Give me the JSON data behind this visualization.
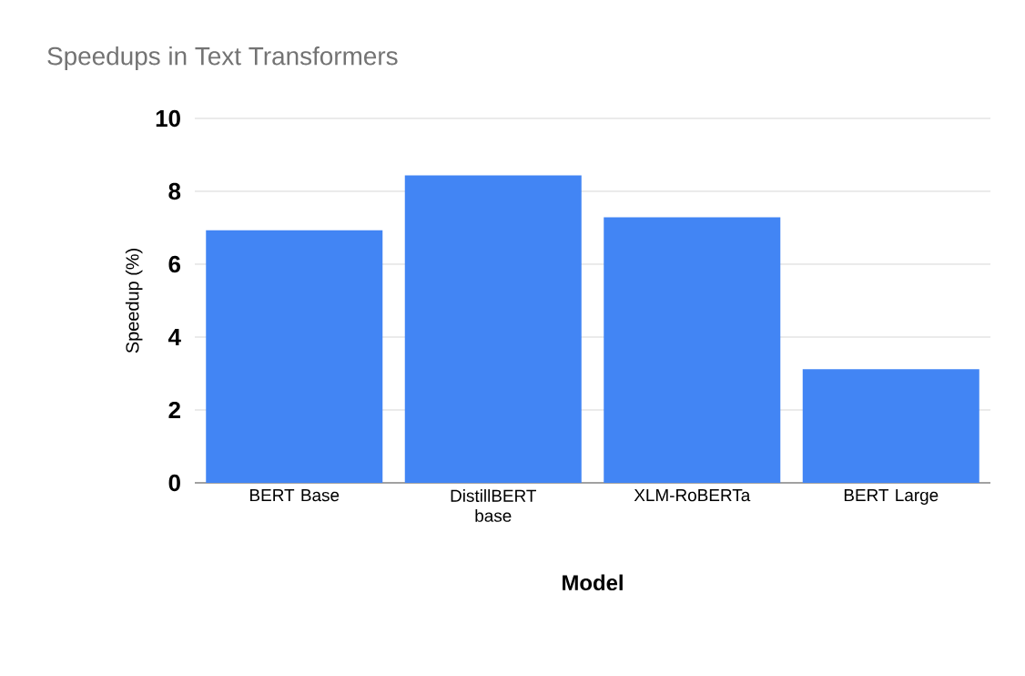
{
  "chart_data": {
    "type": "bar",
    "title": "Speedups in Text Transformers",
    "xlabel": "Model",
    "ylabel": "Speedup (%)",
    "categories": [
      "BERT Base",
      "DistillBERT base",
      "XLM-RoBERTa",
      "BERT Large"
    ],
    "values": [
      6.93,
      8.44,
      7.29,
      3.12
    ],
    "color": "#4285f4",
    "ylim": [
      0,
      10
    ],
    "yticks": [
      0,
      2,
      4,
      6,
      8,
      10
    ],
    "grid": "y"
  }
}
